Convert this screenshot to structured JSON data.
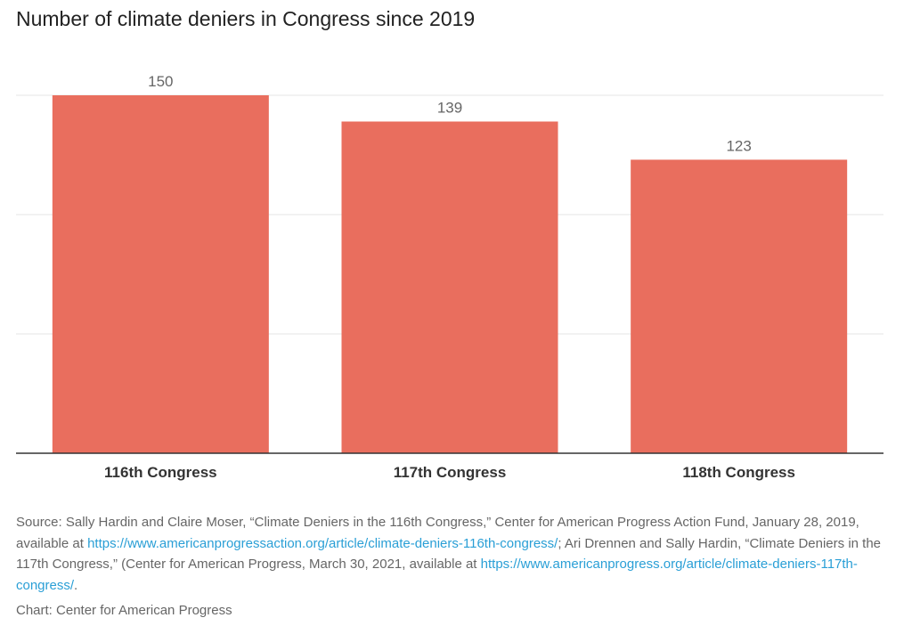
{
  "chart_data": {
    "type": "bar",
    "title": "Number of climate deniers in Congress since 2019",
    "categories": [
      "116th Congress",
      "117th Congress",
      "118th Congress"
    ],
    "values": [
      150,
      139,
      123
    ],
    "xlabel": "",
    "ylabel": "",
    "ylim": [
      0,
      150
    ],
    "gridlines": [
      0,
      50,
      100,
      150
    ],
    "grid": true,
    "bar_color": "#e96e5e"
  },
  "source": {
    "t1": "Source: Sally Hardin and Claire Moser, “Climate Deniers in the 116th Congress,” Center for American Progress Action Fund, January 28, 2019, available at ",
    "link1": "https://www.americanprogressaction.org/article/climate-deniers-116th-congress/",
    "t2": "; Ari Drennen and Sally Hardin, “Climate Deniers in the 117th Congress,” (Center for American Progress, March 30, 2021, available at ",
    "link2": "https://www.americanprogress.org/article/climate-deniers-117th-congress/",
    "t3": "."
  },
  "credit": "Chart: Center for American Progress"
}
